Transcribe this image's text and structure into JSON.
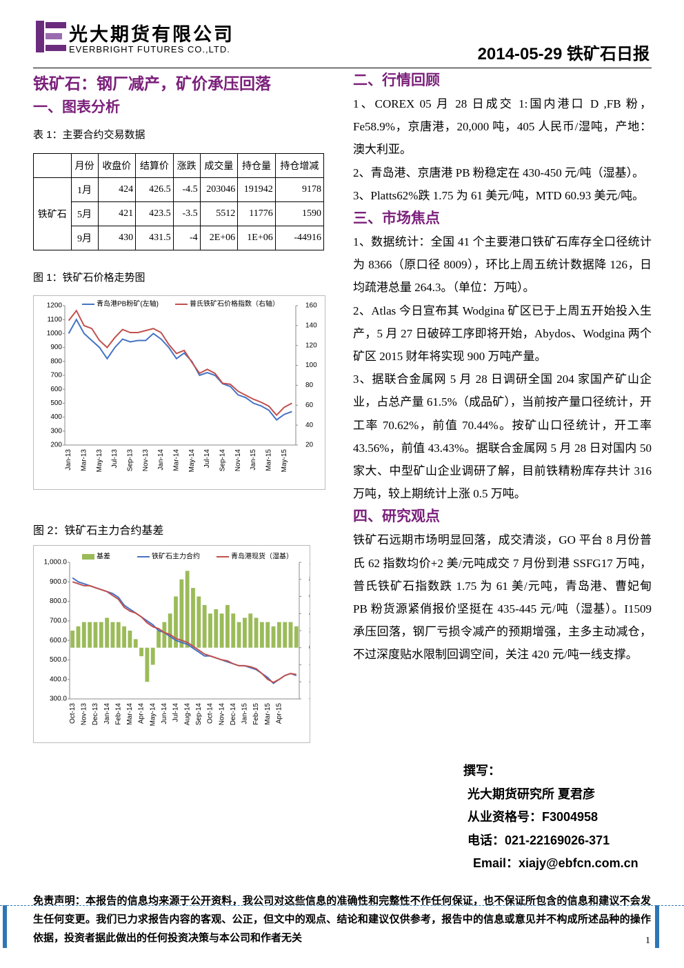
{
  "header": {
    "company_cn": "光大期货有限公司",
    "company_en": "EVERBRIGHT FUTURES CO.,LTD.",
    "report": "2014-05-29 铁矿石日报"
  },
  "headline": "铁矿石：钢厂减产，矿价承压回落",
  "section1": "一、图表分析",
  "table": {
    "caption": "表 1：主要合约交易数据",
    "headers": [
      "月份",
      "收盘价",
      "结算价",
      "涨跌",
      "成交量",
      "持仓量",
      "持仓增减"
    ],
    "product": "铁矿石",
    "rows": [
      [
        "1月",
        "424",
        "426.5",
        "-4.5",
        "203046",
        "191942",
        "9178"
      ],
      [
        "5月",
        "421",
        "423.5",
        "-3.5",
        "5512",
        "11776",
        "1590"
      ],
      [
        "9月",
        "430",
        "431.5",
        "-4",
        "2E+06",
        "1E+06",
        "-44916"
      ]
    ]
  },
  "figure1": "图 1：铁矿石价格走势图",
  "figure2": "图 2：铁矿石主力合约基差",
  "chart_data": [
    {
      "type": "line",
      "categories": [
        "Jan-13",
        null,
        "Mar-13",
        null,
        "May-13",
        null,
        "Jul-13",
        null,
        "Sep-13",
        null,
        "Nov-13",
        null,
        "Jan-14",
        null,
        "Mar-14",
        null,
        "May-14",
        null,
        "Jul-14",
        null,
        "Sep-14",
        null,
        "Nov-14",
        null,
        "Jan-15",
        null,
        "Mar-15",
        null,
        "May-15",
        null
      ],
      "series": [
        {
          "name": "青岛港PB粉矿(左轴)",
          "color": "#4472c4",
          "axis": "y",
          "values": [
            1000,
            1100,
            1000,
            950,
            900,
            820,
            900,
            960,
            940,
            950,
            950,
            1000,
            960,
            900,
            820,
            860,
            800,
            700,
            720,
            700,
            640,
            620,
            560,
            540,
            500,
            480,
            450,
            380,
            420,
            440
          ]
        },
        {
          "name": "普氏铁矿石价格指数（右轴）",
          "color": "#c0504d",
          "axis": "y2",
          "values": [
            145,
            155,
            140,
            137,
            125,
            118,
            128,
            136,
            133,
            133,
            135,
            137,
            133,
            121,
            112,
            115,
            103,
            92,
            96,
            92,
            82,
            81,
            74,
            70,
            66,
            63,
            59,
            50,
            58,
            62
          ]
        }
      ],
      "ylim": [
        200,
        1200
      ],
      "yticks": [
        200,
        300,
        400,
        500,
        600,
        700,
        800,
        900,
        1000,
        1100,
        1200
      ],
      "y2lim": [
        20,
        160
      ],
      "y2ticks": [
        20,
        40,
        60,
        80,
        100,
        120,
        140,
        160
      ]
    },
    {
      "type": "combo",
      "categories": [
        "Oct-13",
        null,
        "Nov-13",
        null,
        "Dec-13",
        null,
        "Jan-14",
        null,
        "Feb-14",
        null,
        "Mar-14",
        null,
        "Apr-14",
        null,
        "May-14",
        null,
        "Jun-14",
        null,
        "Jul-14",
        null,
        "Aug-14",
        null,
        "Sep-14",
        null,
        "Oct-14",
        null,
        "Nov-14",
        null,
        "Dec-14",
        null,
        "Jan-15",
        null,
        "Feb-15",
        null,
        "Mar-15",
        null,
        "Apr-15",
        null,
        null,
        null
      ],
      "series": [
        {
          "name": "基差",
          "color": "#9bbb59",
          "axis": "y2",
          "type": "bar",
          "values": [
            20,
            25,
            30,
            30,
            30,
            30,
            35,
            30,
            30,
            25,
            20,
            10,
            -10,
            -40,
            -20,
            20,
            30,
            40,
            60,
            80,
            90,
            70,
            60,
            50,
            40,
            45,
            40,
            50,
            40,
            30,
            35,
            40,
            35,
            30,
            30,
            25,
            30,
            30,
            30,
            25
          ]
        },
        {
          "name": "铁矿石主力合约",
          "color": "#4472c4",
          "axis": "y",
          "type": "line",
          "values": [
            920,
            900,
            890,
            880,
            870,
            860,
            850,
            840,
            820,
            780,
            760,
            740,
            720,
            700,
            680,
            650,
            640,
            620,
            600,
            590,
            580,
            560,
            540,
            520,
            520,
            510,
            500,
            490,
            480,
            470,
            470,
            460,
            450,
            430,
            410,
            380,
            400,
            420,
            430,
            420
          ]
        },
        {
          "name": "青岛港现货（湿基）",
          "color": "#c0504d",
          "axis": "y",
          "type": "line",
          "values": [
            900,
            890,
            880,
            880,
            870,
            860,
            850,
            830,
            810,
            770,
            750,
            740,
            720,
            690,
            670,
            660,
            640,
            630,
            610,
            600,
            590,
            570,
            550,
            530,
            520,
            510,
            500,
            495,
            480,
            470,
            470,
            465,
            455,
            430,
            400,
            385,
            400,
            420,
            430,
            425
          ]
        }
      ],
      "ylim": [
        300,
        1000
      ],
      "yticks": [
        {
          "value": 300,
          "label": "300.0"
        },
        {
          "value": 400,
          "label": "400.0"
        },
        {
          "value": 500,
          "label": "500.0"
        },
        {
          "value": 600,
          "label": "600.0"
        },
        {
          "value": 700,
          "label": "700.0"
        },
        {
          "value": 800,
          "label": "800.0"
        },
        {
          "value": 900,
          "label": "900.0"
        },
        {
          "value": 1000,
          "label": "1,000.0"
        }
      ],
      "y2lim": [
        -60,
        100
      ],
      "y2ticks": [
        -60,
        -40,
        -20,
        0,
        20,
        40,
        60,
        80,
        100
      ]
    }
  ],
  "review": {
    "heading": "二、行情回顾",
    "items": [
      "1、COREX 05 月 28 日成交 1:国内港口 D ,FB 粉，Fe58.9%，京唐港，20,000 吨，405 人民币/湿吨，产地：澳大利亚。",
      "2、青岛港、京唐港 PB 粉稳定在 430-450 元/吨（湿基）。",
      "3、Platts62%跌 1.75 为 61 美元/吨，MTD 60.93 美元/吨。"
    ]
  },
  "focus": {
    "heading": "三、市场焦点",
    "items": [
      "1、数据统计：全国 41 个主要港口铁矿石库存全口径统计为 8366（原口径 8009），环比上周五统计数据降 126，日均疏港总量 264.3。（单位：万吨）。",
      "2、Atlas 今日宣布其 Wodgina 矿区已于上周五开始投入生产，5 月 27 日破碎工序即将开始，Abydos、Wodgina 两个矿区 2015 财年将实现 900 万吨产量。",
      "3、据联合金属网 5 月 28 日调研全国 204 家国产矿山企业，占总产量 61.5%（成品矿），当前按产量口径统计，开工率 70.62%，前值 70.44%。按矿山口径统计，开工率 43.56%，前值 43.43%。据联合金属网 5 月 28 日对国内 50 家大、中型矿山企业调研了解，目前铁精粉库存共计 316 万吨，较上期统计上涨 0.5 万吨。"
    ]
  },
  "view": {
    "heading": "四、研究观点",
    "text": "铁矿石远期市场明显回落，成交清淡，GO 平台 8 月份普氏 62 指数均价+2 美/元吨成交 7 月份到港 SSFG17 万吨，普氏铁矿石指数跌 1.75 为 61 美/元吨，青岛港、曹妃甸 PB 粉货源紧俏报价坚挺在 435-445 元/吨（湿基）。I1509 承压回落，钢厂亏损令减产的预期增强，主多主动减仓，不过深度贴水限制回调空间，关注 420 元/吨一线支撑。"
  },
  "author": {
    "label": "撰写：",
    "org": "光大期货研究所 夏君彦",
    "license": "从业资格号：F3004958",
    "phone": "电话：021-22169026-371",
    "email": "Email：xiajy@ebfcn.com.cn"
  },
  "disclaimer": "免责声明：本报告的信息均来源于公开资料，我公司对这些信息的准确性和完整性不作任何保证，也不保证所包含的信息和建议不会发生任何变更。我们已力求报告内容的客观、公正，但文中的观点、结论和建议仅供参考，报告中的信息或意见并不构成所述品种的操作依据，投资者据此做出的任何投资决策与本公司和作者无关",
  "page_number": "1"
}
